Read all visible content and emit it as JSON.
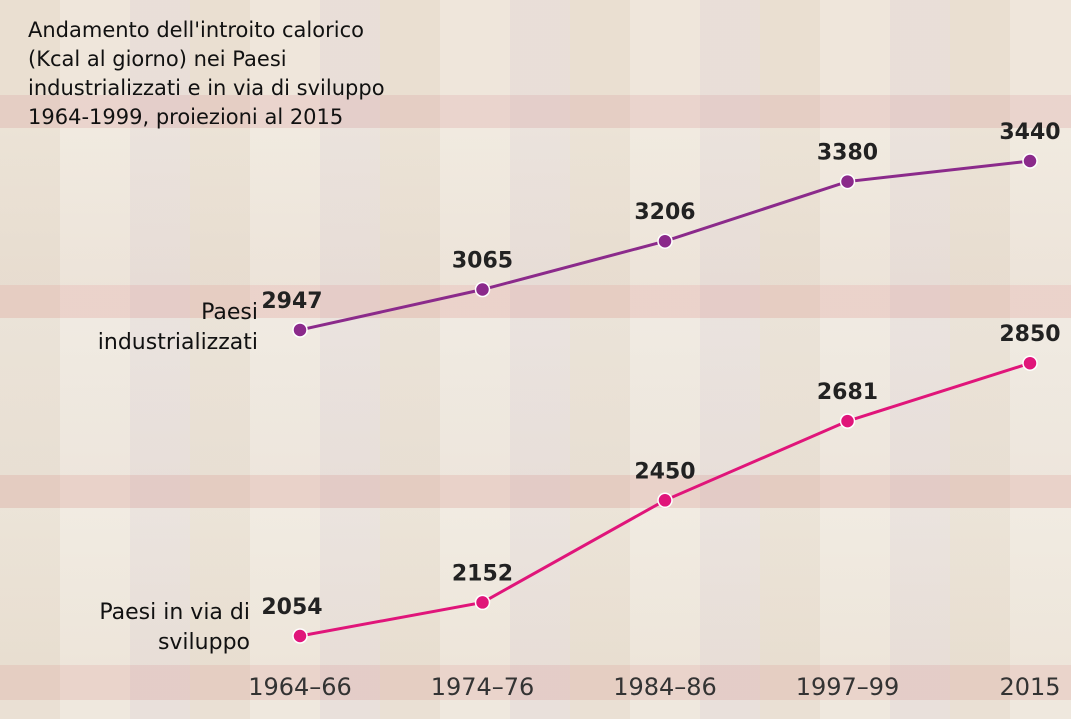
{
  "chart_data": {
    "type": "line",
    "title": "Andamento dell'introito calorico (Kcal al giorno) nei Paesi industrializzati e in via di sviluppo 1964-1999, proiezioni al 2015",
    "categories": [
      "1964–66",
      "1974–76",
      "1984–86",
      "1997–99",
      "2015"
    ],
    "series": [
      {
        "name": "Paesi industrializzati",
        "color": "#8b2a8b",
        "values": [
          2947,
          3065,
          3206,
          3380,
          3440
        ]
      },
      {
        "name": "Paesi in via di sviluppo",
        "color": "#e0157a",
        "values": [
          2054,
          2152,
          2450,
          2681,
          2850
        ]
      }
    ]
  }
}
